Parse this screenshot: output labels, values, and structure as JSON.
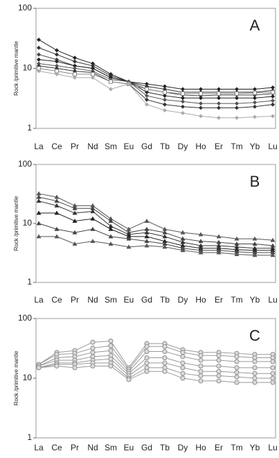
{
  "chart_data": [
    {
      "type": "line",
      "title": "A",
      "y_label": "Rock /primitive mantle",
      "log_scale": true,
      "ylim": [
        1,
        100
      ],
      "yticks": [
        1,
        10,
        100
      ],
      "categories": [
        "La",
        "Ce",
        "Pr",
        "Nd",
        "Sm",
        "Eu",
        "Gd",
        "Tb",
        "Dy",
        "Ho",
        "Er",
        "Tm",
        "Yb",
        "Lu"
      ],
      "series": [
        {
          "color": "#222222",
          "marker": "diamond",
          "values": [
            30,
            20,
            15,
            12,
            8,
            6,
            5.5,
            5,
            4.5,
            4.5,
            4.5,
            4.5,
            4.5,
            4.8
          ]
        },
        {
          "color": "#333333",
          "marker": "diamond",
          "values": [
            22,
            17,
            13,
            11,
            7.5,
            6,
            5,
            4.5,
            4,
            4,
            4,
            4,
            4,
            4.3
          ]
        },
        {
          "color": "#444444",
          "marker": "diamond",
          "values": [
            17,
            14,
            11,
            10,
            7,
            6,
            4.5,
            4,
            3.6,
            3.5,
            3.6,
            3.6,
            3.6,
            3.8
          ]
        },
        {
          "color": "#222222",
          "marker": "diamond",
          "values": [
            14,
            13,
            11,
            10,
            7,
            6,
            4,
            3.5,
            3.2,
            3.2,
            3.2,
            3.2,
            3.2,
            3.4
          ]
        },
        {
          "color": "#555555",
          "marker": "diamond",
          "values": [
            12,
            11,
            10,
            9,
            6.5,
            6,
            3.5,
            3,
            2.8,
            2.6,
            2.6,
            2.6,
            2.7,
            2.9
          ]
        },
        {
          "color": "#333333",
          "marker": "diamond",
          "values": [
            11,
            10,
            9,
            8.5,
            6,
            5.5,
            3,
            2.5,
            2.3,
            2.2,
            2.2,
            2.2,
            2.3,
            2.5
          ]
        },
        {
          "color": "#888888",
          "marker": "square",
          "values": [
            10,
            9,
            8,
            8,
            6,
            5.5,
            4.5,
            4,
            3.8,
            3.8,
            3.8,
            3.8,
            3.9,
            4.0
          ]
        },
        {
          "color": "#aaaaaa",
          "marker": "diamond",
          "values": [
            9,
            8,
            7,
            7,
            4.5,
            5.5,
            2.5,
            2,
            1.8,
            1.6,
            1.5,
            1.5,
            1.55,
            1.6
          ]
        }
      ]
    },
    {
      "type": "line",
      "title": "B",
      "y_label": "Rock /primitive mantle",
      "log_scale": true,
      "ylim": [
        1,
        100
      ],
      "yticks": [
        1,
        10,
        100
      ],
      "categories": [
        "La",
        "Ce",
        "Pr",
        "Nd",
        "Sm",
        "Eu",
        "Gd",
        "Tb",
        "Dy",
        "Ho",
        "Er",
        "Tm",
        "Yb",
        "Lu"
      ],
      "series": [
        {
          "color": "#555555",
          "marker": "triangle",
          "values": [
            32,
            28,
            20,
            20,
            12,
            8,
            11,
            8,
            7,
            6.5,
            6,
            5.5,
            5.5,
            5.2
          ]
        },
        {
          "color": "#444444",
          "marker": "triangle",
          "values": [
            28,
            24,
            18,
            18,
            11,
            7,
            8,
            7,
            5.5,
            5,
            4.8,
            4.5,
            4.5,
            4.2
          ]
        },
        {
          "color": "#333333",
          "marker": "triangle",
          "values": [
            24,
            20,
            15,
            16,
            9,
            6.5,
            7,
            6,
            4.8,
            4.2,
            4.2,
            4,
            3.8,
            3.8
          ]
        },
        {
          "color": "#222222",
          "marker": "triangle",
          "values": [
            15,
            15,
            11,
            12,
            8,
            6,
            6,
            5,
            4.2,
            3.8,
            3.8,
            3.6,
            3.5,
            3.5
          ]
        },
        {
          "color": "#444444",
          "marker": "triangle",
          "values": [
            10,
            8,
            7,
            8,
            6,
            5.5,
            5,
            4.5,
            3.8,
            3.5,
            3.5,
            3.3,
            3.2,
            3.2
          ]
        },
        {
          "color": "#555555",
          "marker": "triangle",
          "values": [
            6,
            6,
            4.5,
            5,
            4.5,
            4,
            4.2,
            4,
            3.5,
            3.2,
            3.2,
            3,
            2.9,
            2.9
          ]
        }
      ]
    },
    {
      "type": "line",
      "title": "C",
      "y_label": "Rock /primitive mantle",
      "log_scale": true,
      "ylim": [
        1,
        100
      ],
      "yticks": [
        1,
        10,
        100
      ],
      "categories": [
        "La",
        "Ce",
        "Pr",
        "Nd",
        "Sm",
        "Eu",
        "Gd",
        "Tb",
        "Dy",
        "Ho",
        "Er",
        "Tm",
        "Yb",
        "Lu"
      ],
      "series": [
        {
          "color": "#999999",
          "marker": "circle",
          "values": [
            17,
            27,
            29,
            40,
            42,
            15,
            38,
            38,
            30,
            27,
            27,
            26,
            25,
            25
          ]
        },
        {
          "color": "#999999",
          "marker": "circle",
          "values": [
            17,
            25,
            26,
            32,
            35,
            14,
            34,
            34,
            27,
            24,
            24,
            23,
            22,
            22
          ]
        },
        {
          "color": "#999999",
          "marker": "circle",
          "values": [
            16,
            22,
            23,
            27,
            29,
            13,
            28,
            28,
            23,
            20,
            20,
            19,
            19,
            19
          ]
        },
        {
          "color": "#999999",
          "marker": "circle",
          "values": [
            16,
            20,
            20,
            23,
            24,
            12,
            22,
            22,
            18,
            16,
            16,
            15,
            15,
            15
          ]
        },
        {
          "color": "#999999",
          "marker": "circle",
          "values": [
            15,
            18,
            18,
            20,
            21,
            11,
            18,
            18,
            15,
            13,
            13,
            12.5,
            12,
            12
          ]
        },
        {
          "color": "#999999",
          "marker": "circle",
          "values": [
            15,
            17,
            17,
            18,
            18,
            10,
            15,
            15,
            12,
            11,
            11,
            10.5,
            10,
            10
          ]
        },
        {
          "color": "#999999",
          "marker": "circle",
          "values": [
            15,
            16,
            15,
            16,
            16,
            9.5,
            13,
            13,
            10,
            9,
            9,
            8.5,
            8.5,
            8.5
          ]
        }
      ]
    }
  ]
}
